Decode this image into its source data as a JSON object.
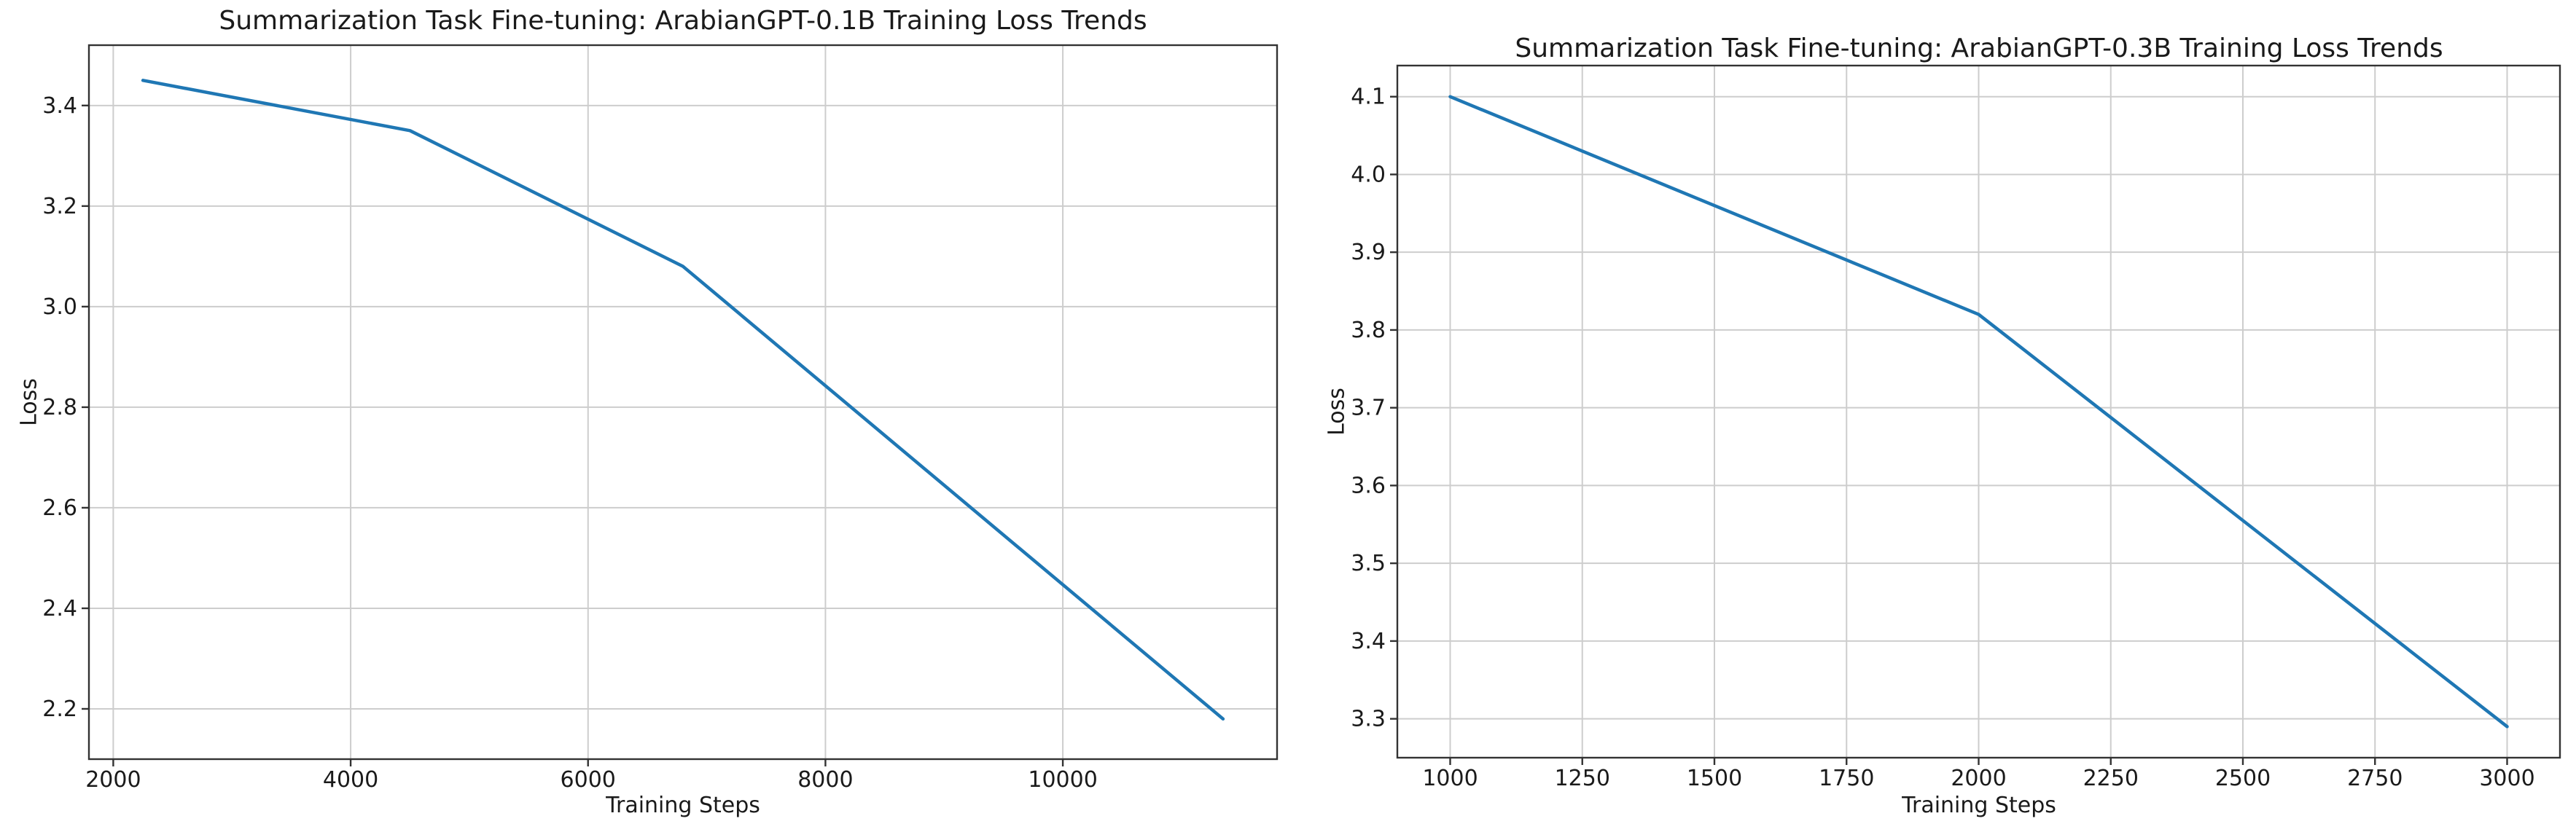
{
  "page": {
    "background_color": "#ffffff",
    "text_color": "#1a1a1a",
    "grid_color": "#cdcdcd",
    "spine_color": "#333333",
    "accent_line_color": "#1f77b4"
  },
  "chart_data": [
    {
      "type": "line",
      "title": "Summarization Task Fine-tuning: ArabianGPT-0.1B Training Loss Trends",
      "xlabel": "Training Steps",
      "ylabel": "Loss",
      "x": [
        2250,
        4500,
        6800,
        11350
      ],
      "y": [
        3.45,
        3.35,
        3.08,
        2.18
      ],
      "xlim": [
        1795,
        11805
      ],
      "ylim": [
        2.1,
        3.52
      ],
      "xticks": [
        2000,
        4000,
        6000,
        8000,
        10000
      ],
      "yticks": [
        2.2,
        2.4,
        2.6,
        2.8,
        3.0,
        3.2,
        3.4
      ],
      "grid": true,
      "legend": null,
      "line_color": "#1f77b4"
    },
    {
      "type": "line",
      "title": "Summarization Task Fine-tuning: ArabianGPT-0.3B Training Loss Trends",
      "xlabel": "Training Steps",
      "ylabel": "Loss",
      "x": [
        1000,
        2000,
        3000
      ],
      "y": [
        4.1,
        3.82,
        3.29
      ],
      "xlim": [
        900,
        3100
      ],
      "ylim": [
        3.25,
        4.14
      ],
      "xticks": [
        1000,
        1250,
        1500,
        1750,
        2000,
        2250,
        2500,
        2750,
        3000
      ],
      "yticks": [
        3.3,
        3.4,
        3.5,
        3.6,
        3.7,
        3.8,
        3.9,
        4.0,
        4.1
      ],
      "grid": true,
      "legend": null,
      "line_color": "#1f77b4"
    }
  ]
}
